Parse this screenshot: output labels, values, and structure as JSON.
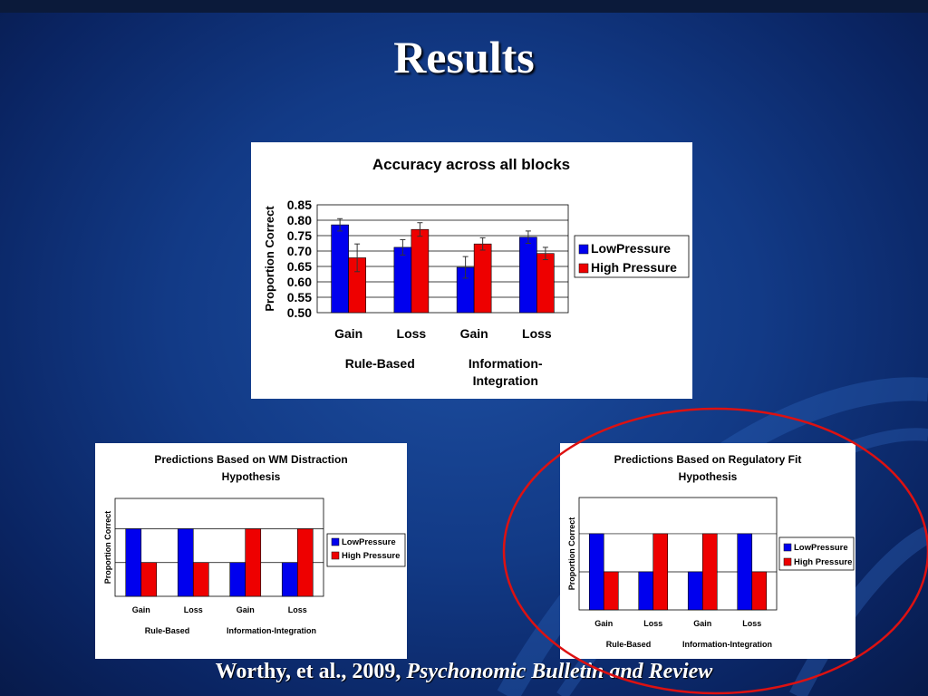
{
  "slide": {
    "title": "Results",
    "citation_authors": "Worthy, et al., 2009, ",
    "citation_journal": "Psychonomic Bulletin and Review"
  },
  "colors": {
    "low": "#0000ee",
    "high": "#ee0000",
    "highlight": "#dd1111"
  },
  "chart_data": [
    {
      "type": "bar",
      "title": "Accuracy across all blocks",
      "ylabel": "Proportion Correct",
      "ylim": [
        0.5,
        0.85
      ],
      "yticks": [
        "0.50",
        "0.55",
        "0.60",
        "0.65",
        "0.70",
        "0.75",
        "0.80",
        "0.85"
      ],
      "categories": [
        "Gain",
        "Loss",
        "Gain",
        "Loss"
      ],
      "groups": [
        "Rule-Based",
        "Information-Integration"
      ],
      "legend": "right",
      "grid": true,
      "series": [
        {
          "name": "LowPressure",
          "values": [
            0.785,
            0.712,
            0.647,
            0.745
          ],
          "errors": [
            0.02,
            0.025,
            0.035,
            0.02
          ]
        },
        {
          "name": "High Pressure",
          "values": [
            0.678,
            0.77,
            0.723,
            0.692
          ],
          "errors": [
            0.045,
            0.022,
            0.02,
            0.02
          ]
        }
      ]
    },
    {
      "type": "bar",
      "title": "Predictions Based on WM Distraction Hypothesis",
      "ylabel": "Proportion Correct",
      "categories": [
        "Gain",
        "Loss",
        "Gain",
        "Loss"
      ],
      "groups": [
        "Rule-Based",
        "Information-Integration"
      ],
      "legend": "right",
      "grid": true,
      "series": [
        {
          "name": "LowPressure",
          "values": [
            2,
            2,
            1,
            1
          ]
        },
        {
          "name": "High Pressure",
          "values": [
            1,
            1,
            2,
            2
          ]
        }
      ]
    },
    {
      "type": "bar",
      "title": "Predictions Based on Regulatory Fit Hypothesis",
      "ylabel": "Proportion Correct",
      "categories": [
        "Gain",
        "Loss",
        "Gain",
        "Loss"
      ],
      "groups": [
        "Rule-Based",
        "Information-Integration"
      ],
      "legend": "right",
      "grid": true,
      "series": [
        {
          "name": "LowPressure",
          "values": [
            2,
            1,
            1,
            2
          ]
        },
        {
          "name": "High Pressure",
          "values": [
            1,
            2,
            2,
            1
          ]
        }
      ]
    }
  ]
}
